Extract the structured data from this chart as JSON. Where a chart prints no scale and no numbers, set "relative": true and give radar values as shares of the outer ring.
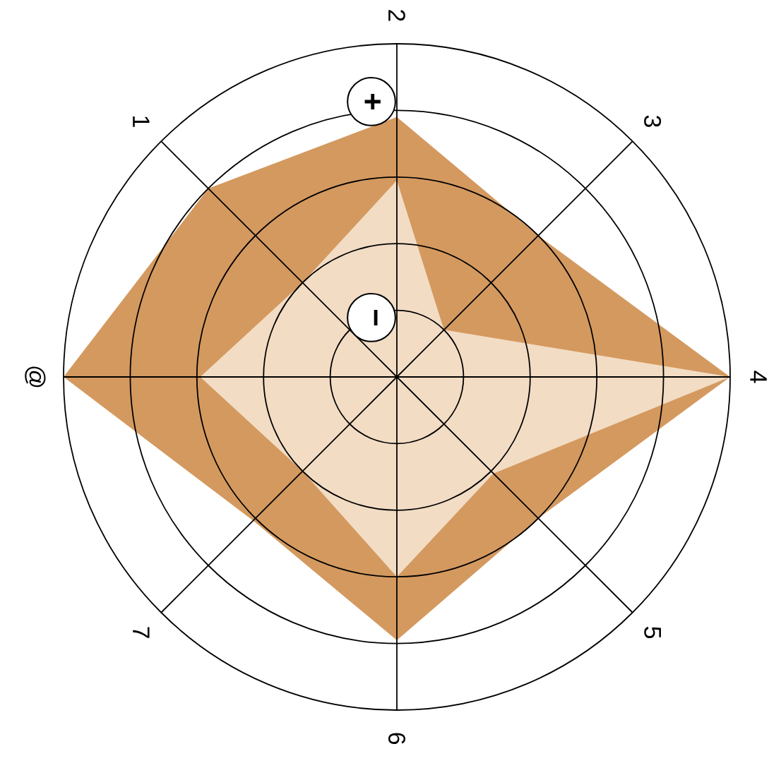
{
  "chart_data": {
    "type": "radar",
    "relative": true,
    "categories": [
      "2",
      "3",
      "4",
      "5",
      "6",
      "7",
      "@",
      "1"
    ],
    "series": [
      {
        "color": "#d4995f",
        "values": [
          0.78,
          0.6,
          1.0,
          0.6,
          0.79,
          0.61,
          1.0,
          0.8
        ]
      },
      {
        "color": "#f2dcc4",
        "values": [
          0.59,
          0.2,
          1.0,
          0.41,
          0.6,
          0.4,
          0.59,
          0.4
        ]
      }
    ],
    "annotations": [
      "+",
      "−"
    ]
  }
}
